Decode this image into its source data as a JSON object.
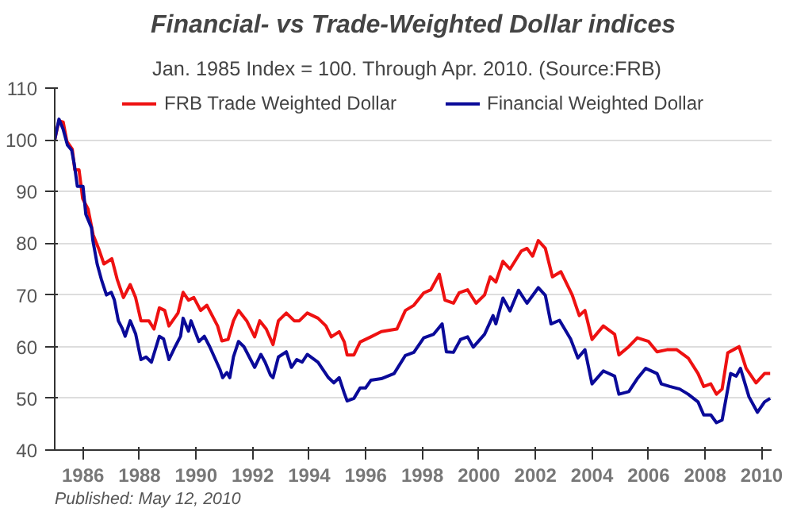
{
  "chart_data": {
    "type": "line",
    "title": "Financial- vs Trade-Weighted Dollar indices",
    "subtitle": "Jan. 1985 Index = 100.  Through Apr. 2010.  (Source:FRB)",
    "annotations": [
      "Published: May 12, 2010"
    ],
    "xlim": [
      1985,
      2010.35
    ],
    "xticks": [
      1986,
      1988,
      1990,
      1992,
      1994,
      1996,
      1998,
      2000,
      2002,
      2004,
      2006,
      2008,
      2010
    ],
    "ylim": [
      40,
      110
    ],
    "yticks": [
      40,
      50,
      60,
      70,
      80,
      90,
      100,
      110
    ],
    "grid": "y",
    "legend": "top",
    "line_style": "solid",
    "marker": "none",
    "series": [
      {
        "name": "FRB Trade Weighted Dollar",
        "color": "#ee1111",
        "x": [
          1985.0,
          1985.15,
          1985.3,
          1985.43,
          1985.62,
          1985.71,
          1985.86,
          1985.99,
          1986.18,
          1986.36,
          1986.55,
          1986.74,
          1987.02,
          1987.21,
          1987.43,
          1987.67,
          1987.86,
          1988.05,
          1988.33,
          1988.51,
          1988.7,
          1988.89,
          1989.04,
          1989.36,
          1989.54,
          1989.73,
          1989.92,
          1990.16,
          1990.38,
          1990.57,
          1990.76,
          1990.91,
          1991.13,
          1991.32,
          1991.5,
          1991.79,
          1992.07,
          1992.25,
          1992.48,
          1992.72,
          1992.91,
          1993.19,
          1993.47,
          1993.65,
          1993.93,
          1994.31,
          1994.59,
          1994.78,
          1995.06,
          1995.24,
          1995.34,
          1995.58,
          1995.8,
          1996.18,
          1996.55,
          1997.1,
          1997.4,
          1997.7,
          1998.05,
          1998.3,
          1998.6,
          1998.8,
          1999.1,
          1999.3,
          1999.6,
          1999.9,
          2000.2,
          2000.4,
          2000.6,
          2000.85,
          2001.1,
          2001.5,
          2001.7,
          2001.9,
          2002.1,
          2002.35,
          2002.6,
          2002.9,
          2003.3,
          2003.55,
          2003.75,
          2004.0,
          2004.4,
          2004.8,
          2004.95,
          2005.3,
          2005.6,
          2006.0,
          2006.3,
          2006.65,
          2007.0,
          2007.4,
          2007.75,
          2007.95,
          2008.2,
          2008.4,
          2008.6,
          2008.8,
          2009.0,
          2009.2,
          2009.45,
          2009.8,
          2010.1,
          2010.3
        ],
        "values": [
          100,
          103.7,
          103.4,
          99.7,
          98.2,
          94.2,
          94.2,
          88.6,
          86.6,
          81.6,
          79,
          76,
          77,
          73,
          69.5,
          72,
          69.5,
          65,
          65,
          63.4,
          67.5,
          67,
          64,
          66.5,
          70.5,
          69,
          69.5,
          67,
          68,
          66,
          64,
          61.1,
          61.4,
          65,
          67,
          65,
          61.9,
          65,
          63.4,
          60.4,
          65,
          66.5,
          65,
          65,
          66.5,
          65.5,
          64,
          61.9,
          62.9,
          60.9,
          58.4,
          58.4,
          60.9,
          61.9,
          62.9,
          63.4,
          67,
          68,
          70.4,
          71,
          74,
          69,
          68.4,
          70.4,
          71,
          68.4,
          70,
          73.5,
          72.5,
          76.5,
          75,
          78.5,
          79,
          77.5,
          80.5,
          79,
          73.5,
          74.5,
          70,
          66,
          67,
          61.4,
          64,
          62.4,
          58.4,
          60,
          61.7,
          61,
          59,
          59.4,
          59.4,
          57.8,
          54.8,
          52.3,
          52.8,
          50.8,
          51.8,
          58.8,
          59.4,
          60,
          55.8,
          53,
          54.8,
          54.8
        ]
      },
      {
        "name": "Financial Weighted Dollar",
        "color": "#0a0a99",
        "x": [
          1985.0,
          1985.15,
          1985.3,
          1985.45,
          1985.6,
          1985.7,
          1985.8,
          1986.0,
          1986.1,
          1986.3,
          1986.35,
          1986.5,
          1986.65,
          1986.83,
          1987.0,
          1987.11,
          1987.25,
          1987.39,
          1987.49,
          1987.67,
          1987.86,
          1988.05,
          1988.23,
          1988.42,
          1988.7,
          1988.85,
          1989.04,
          1989.26,
          1989.45,
          1989.54,
          1989.73,
          1989.82,
          1990.1,
          1990.29,
          1990.48,
          1990.85,
          1990.94,
          1991.09,
          1991.19,
          1991.32,
          1991.5,
          1991.69,
          1991.88,
          1992.07,
          1992.29,
          1992.44,
          1992.63,
          1992.72,
          1992.91,
          1993.19,
          1993.37,
          1993.56,
          1993.75,
          1993.93,
          1994.31,
          1994.68,
          1994.87,
          1995.06,
          1995.24,
          1995.34,
          1995.58,
          1995.8,
          1995.99,
          1996.18,
          1996.55,
          1997.0,
          1997.4,
          1997.7,
          1998.05,
          1998.4,
          1998.7,
          1998.85,
          1999.1,
          1999.35,
          1999.6,
          1999.8,
          2000.2,
          2000.5,
          2000.6,
          2000.85,
          2001.1,
          2001.4,
          2001.7,
          2002.1,
          2002.35,
          2002.55,
          2002.85,
          2003.25,
          2003.5,
          2003.75,
          2004.0,
          2004.4,
          2004.8,
          2004.95,
          2005.3,
          2005.6,
          2005.9,
          2006.3,
          2006.45,
          2006.75,
          2007.1,
          2007.4,
          2007.75,
          2007.95,
          2008.2,
          2008.4,
          2008.6,
          2008.9,
          2009.1,
          2009.25,
          2009.55,
          2009.85,
          2010.1,
          2010.3
        ],
        "values": [
          100,
          104,
          102,
          99,
          98,
          95,
          91,
          91,
          85.6,
          83,
          80.5,
          76,
          73,
          70,
          70.5,
          69,
          65,
          63.5,
          62,
          65,
          62.5,
          57.5,
          58,
          57,
          62,
          61.5,
          57.5,
          60,
          62,
          65.5,
          63,
          65,
          61,
          62,
          60,
          55.5,
          54,
          55,
          54,
          58,
          61,
          60,
          58,
          56,
          58.5,
          57,
          54.5,
          54,
          58,
          59,
          56,
          57.5,
          57,
          58.5,
          57,
          54,
          53,
          54,
          51,
          49.5,
          50,
          52,
          52,
          53.5,
          53.8,
          54.8,
          58.3,
          58.9,
          61.7,
          62.4,
          64.4,
          59,
          58.9,
          61.4,
          61.9,
          59.9,
          62.4,
          66,
          64.4,
          69.4,
          66.9,
          70.9,
          68.4,
          71.4,
          69.9,
          64.4,
          65.1,
          61.4,
          57.8,
          59.4,
          52.8,
          55.3,
          54.3,
          50.8,
          51.3,
          53.8,
          55.8,
          54.8,
          52.8,
          52.3,
          51.8,
          50.8,
          49.3,
          46.8,
          46.8,
          45.3,
          45.8,
          54.8,
          54.3,
          55.8,
          50.3,
          47.3,
          49.3,
          50
        ]
      }
    ]
  }
}
